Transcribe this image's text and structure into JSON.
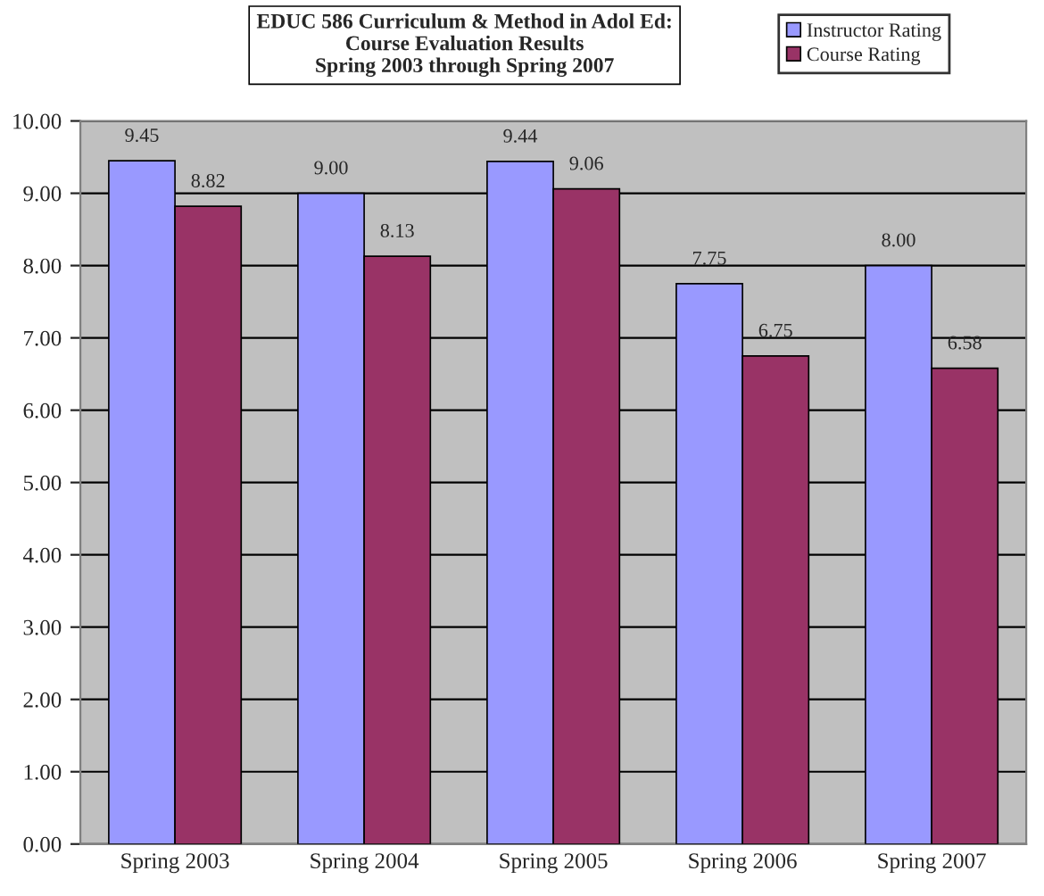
{
  "chart_data": {
    "type": "bar",
    "title": "EDUC 586 Curriculum & Method in Adol Ed:\nCourse Evaluation Results\nSpring 2003 through Spring 2007",
    "categories": [
      "Spring 2003",
      "Spring 2004",
      "Spring 2005",
      "Spring 2006",
      "Spring 2007"
    ],
    "series": [
      {
        "name": "Instructor Rating",
        "color": "#9999ff",
        "values": [
          9.45,
          9.0,
          9.44,
          7.75,
          8.0
        ],
        "value_labels": [
          "9.45",
          "9.00",
          "9.44",
          "7.75",
          "8.00"
        ]
      },
      {
        "name": "Course Rating",
        "color": "#993366",
        "values": [
          8.82,
          8.13,
          9.06,
          6.75,
          6.58
        ],
        "value_labels": [
          "8.82",
          "8.13",
          "9.06",
          "6.75",
          "6.58"
        ]
      }
    ],
    "ylim": [
      0,
      10
    ],
    "yticks": [
      {
        "value": 0,
        "label": "0.00"
      },
      {
        "value": 1,
        "label": "1.00"
      },
      {
        "value": 2,
        "label": "2.00"
      },
      {
        "value": 3,
        "label": "3.00"
      },
      {
        "value": 4,
        "label": "4.00"
      },
      {
        "value": 5,
        "label": "5.00"
      },
      {
        "value": 6,
        "label": "6.00"
      },
      {
        "value": 7,
        "label": "7.00"
      },
      {
        "value": 8,
        "label": "8.00"
      },
      {
        "value": 9,
        "label": "9.00"
      },
      {
        "value": 10,
        "label": "10.00"
      }
    ],
    "grid": "y",
    "legend": "top right"
  }
}
